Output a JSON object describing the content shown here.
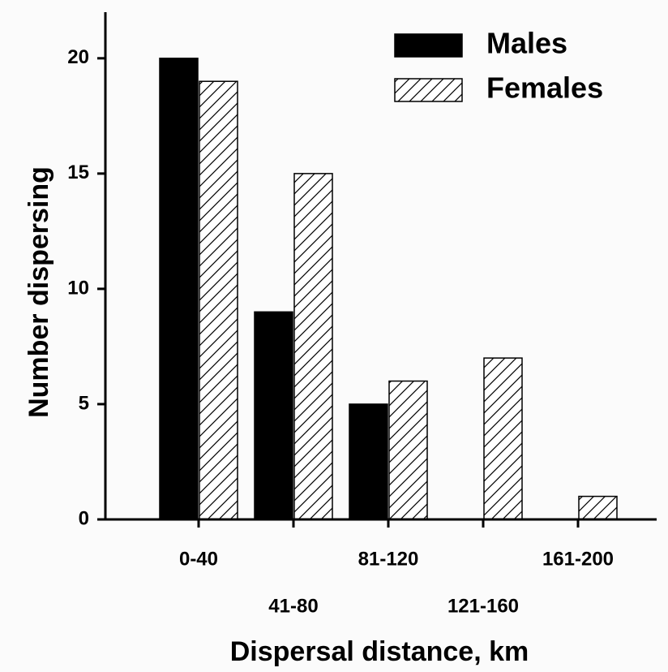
{
  "chart_data": {
    "type": "bar",
    "xlabel": "Dispersal distance, km",
    "ylabel": "Number dispersing",
    "categories": [
      "0-40",
      "41-80",
      "81-120",
      "121-160",
      "161-200"
    ],
    "series": [
      {
        "name": "Males",
        "color": "#000000",
        "values": [
          20,
          9,
          5,
          0,
          0
        ]
      },
      {
        "name": "Females",
        "color": "hatch",
        "values": [
          19,
          15,
          6,
          7,
          1
        ]
      }
    ],
    "ylim": [
      0,
      22
    ],
    "yticks": [
      0,
      5,
      10,
      15,
      20
    ],
    "legend": "upper right"
  }
}
